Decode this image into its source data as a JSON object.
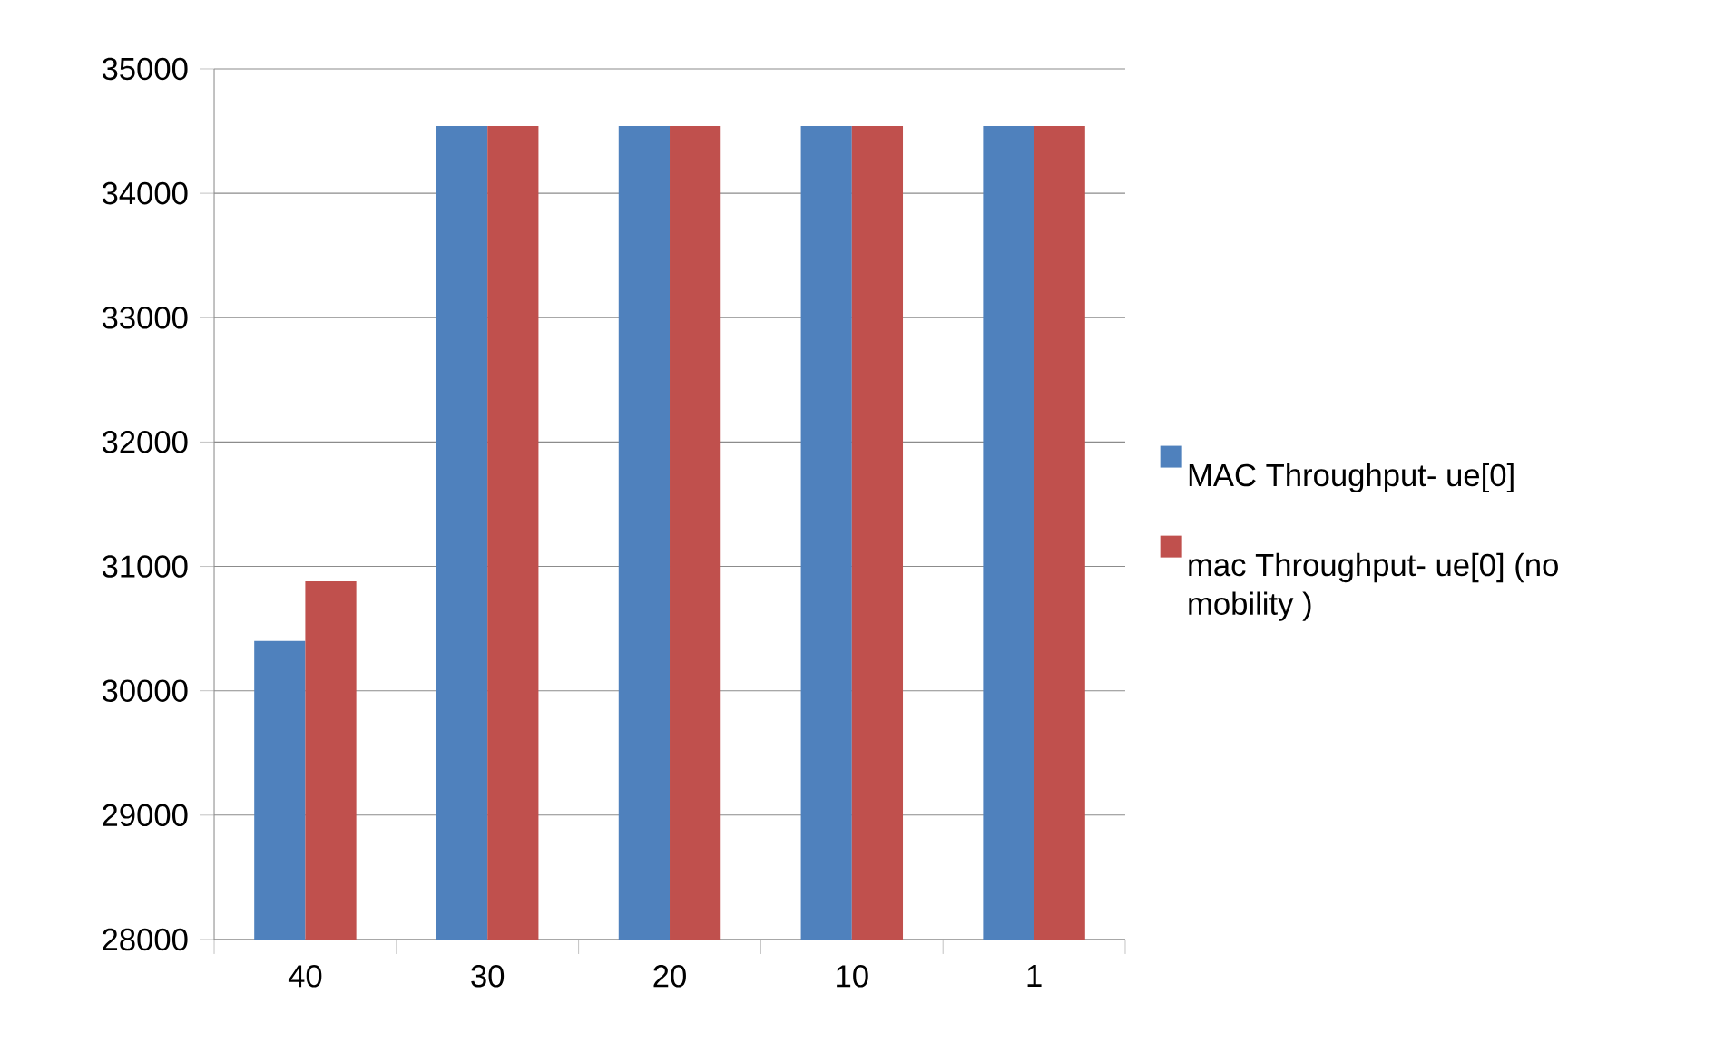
{
  "chart_data": {
    "type": "bar",
    "categories": [
      "40",
      "30",
      "20",
      "10",
      "1"
    ],
    "series": [
      {
        "name": "MAC Throughput- ue[0]",
        "color": "#4f81bd",
        "values": [
          30400,
          34540,
          34540,
          34540,
          34540
        ]
      },
      {
        "name": "mac Throughput- ue[0] (no mobility )",
        "color": "#c0504d",
        "values": [
          30880,
          34540,
          34540,
          34540,
          34540
        ]
      }
    ],
    "ylim": [
      28000,
      35000
    ],
    "yticks": [
      28000,
      29000,
      30000,
      31000,
      32000,
      33000,
      34000,
      35000
    ],
    "grid": "y",
    "legend": "right"
  }
}
